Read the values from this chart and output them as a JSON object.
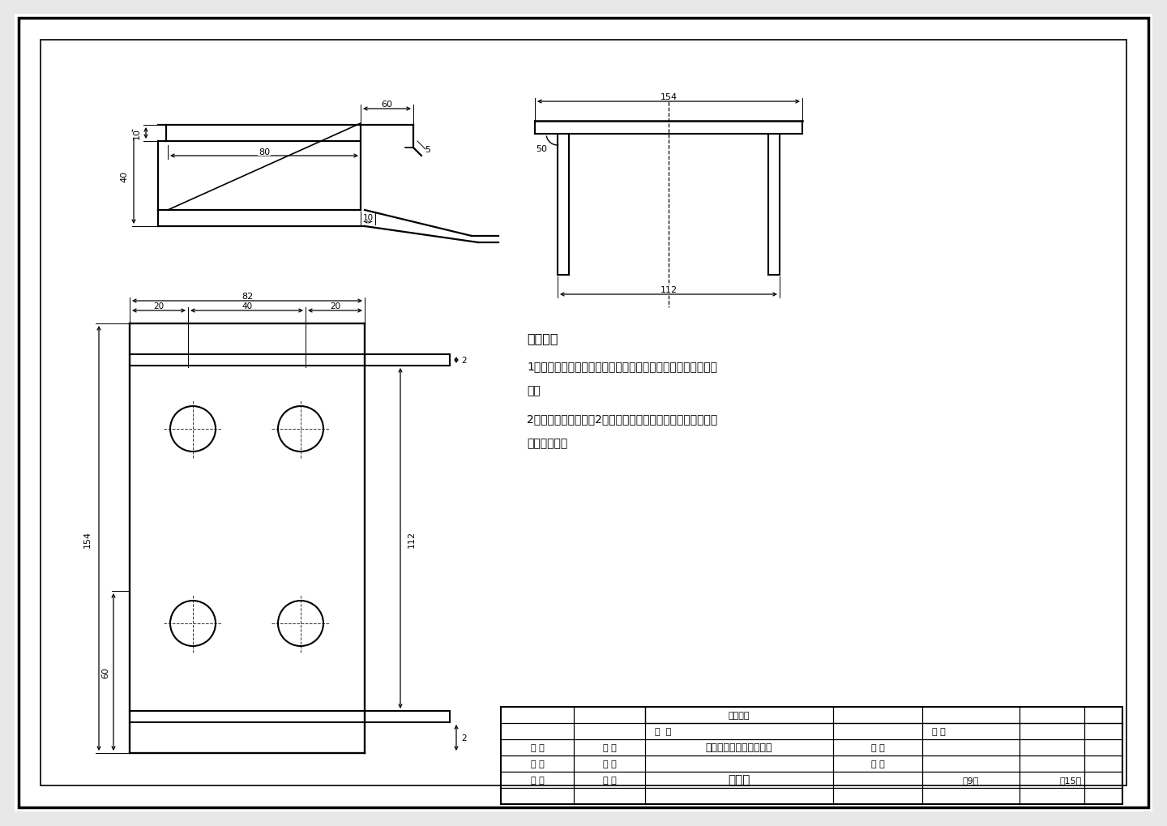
{
  "bg_color": "#e8e8e8",
  "paper_color": "#ffffff",
  "line_color": "#000000",
  "design_notes_title": "设计说明",
  "note1_line1": "1、本连接板应由专业电气箱柜厂制作，要求尺寸准确，结构严",
  "note1_line2": "密。",
  "note2_line1": "2、本件每套盒体制作2件，下料、折弯、钒孔后与盒体上、下",
  "note2_line2": "部钉板焊接。",
  "tb_dinghuodanwei": "订货单位",
  "tb_xiangmu": "项  目",
  "tb_riqi": "日 期",
  "tb_shending": "审 定",
  "tb_sheji": "设 计",
  "tb_project_name": "布袋除尘系统接近开关盒",
  "tb_bili": "比 例",
  "tb_shenhe": "审 核",
  "tb_huitu": "绘 图",
  "tb_tuhao": "图 号",
  "tb_jiaoke": "校 核",
  "tb_miaotu": "描 图",
  "tb_drawing_name": "连接板",
  "tb_page": "第9页",
  "tb_total": "內15页"
}
